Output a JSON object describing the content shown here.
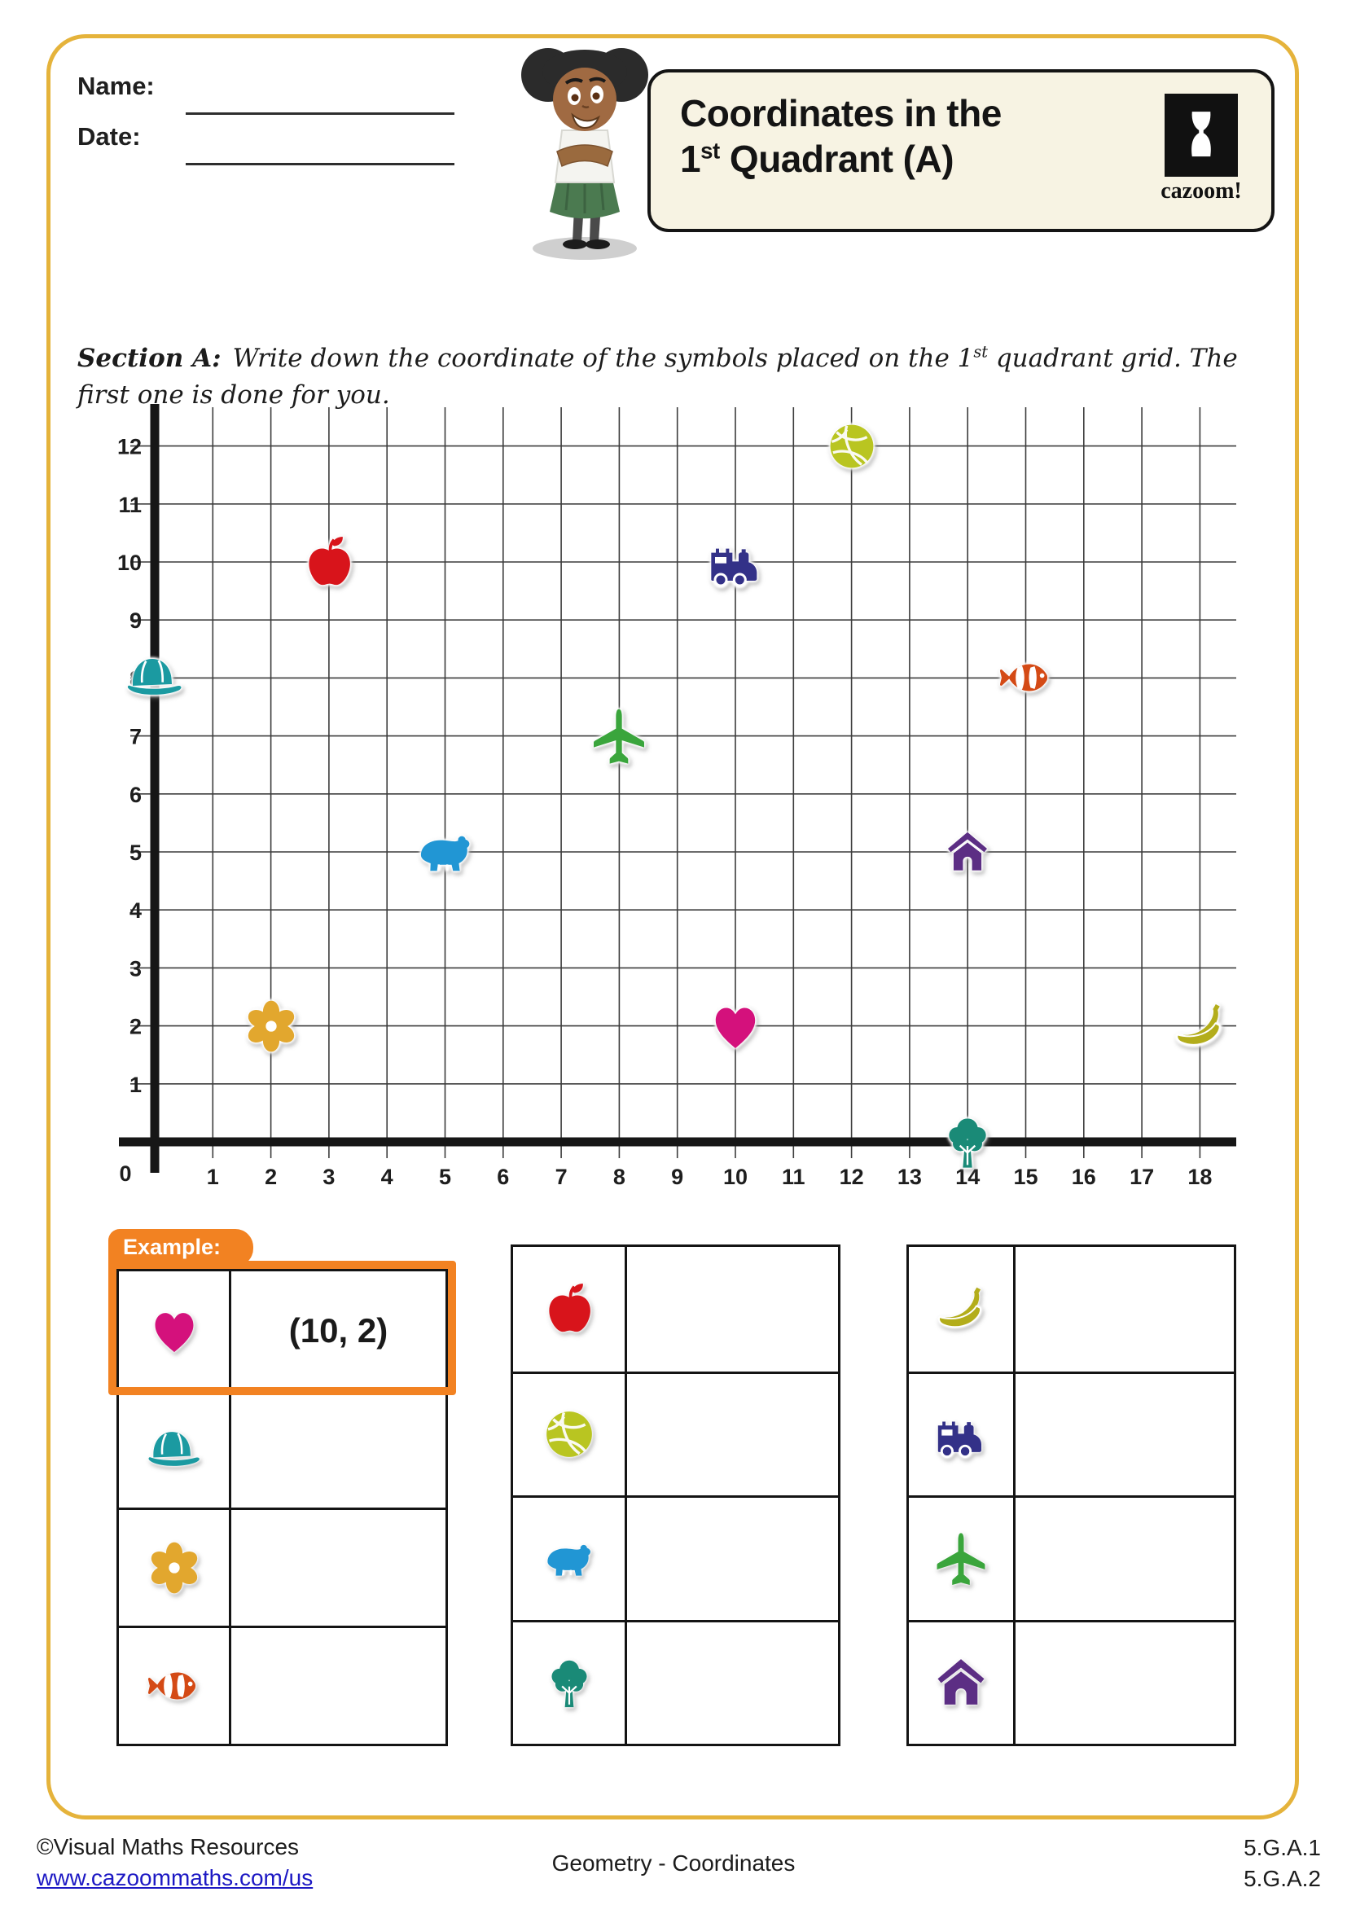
{
  "page": {
    "name_label": "Name:",
    "date_label": "Date:",
    "title_line1": "Coordinates in the",
    "title_num": "1",
    "title_sup": "st",
    "title_rest": " Quadrant (A)",
    "logo_text": "cazoom!"
  },
  "section_a": {
    "heading": "Section A:",
    "before_sup": "Write down the coordinate of the symbols placed on the 1",
    "sup": "st",
    "after_sup": " quadrant grid. The first one is done for you."
  },
  "chart_data": {
    "type": "scatter",
    "title": "",
    "xlabel": "",
    "ylabel": "",
    "xlim": [
      0,
      18
    ],
    "ylim": [
      0,
      12
    ],
    "grid": true,
    "x_ticks": [
      0,
      1,
      2,
      3,
      4,
      5,
      6,
      7,
      8,
      9,
      10,
      11,
      12,
      13,
      14,
      15,
      16,
      17,
      18
    ],
    "y_ticks": [
      1,
      2,
      3,
      4,
      5,
      6,
      7,
      8,
      9,
      10,
      11,
      12
    ],
    "points": [
      {
        "symbol": "cap",
        "x": 0,
        "y": 8,
        "color": "#1b9aa1",
        "size": 80
      },
      {
        "symbol": "flower",
        "x": 2,
        "y": 2,
        "color": "#e2a72e",
        "size": 76
      },
      {
        "symbol": "apple",
        "x": 3,
        "y": 10,
        "color": "#d8141b",
        "size": 76
      },
      {
        "symbol": "bear",
        "x": 5,
        "y": 5,
        "color": "#2196d4",
        "size": 86
      },
      {
        "symbol": "airplane",
        "x": 8,
        "y": 7,
        "color": "#3aa53c",
        "size": 80
      },
      {
        "symbol": "train",
        "x": 10,
        "y": 10,
        "color": "#333188",
        "size": 80
      },
      {
        "symbol": "heart",
        "x": 10,
        "y": 2,
        "color": "#d4117c",
        "size": 66
      },
      {
        "symbol": "basketball",
        "x": 12,
        "y": 12,
        "color": "#b9c521",
        "size": 72
      },
      {
        "symbol": "house",
        "x": 14,
        "y": 5,
        "color": "#5c2e84",
        "size": 64
      },
      {
        "symbol": "tree",
        "x": 14,
        "y": 0,
        "color": "#1a8a77",
        "size": 80
      },
      {
        "symbol": "fish",
        "x": 15,
        "y": 8,
        "color": "#d44a15",
        "size": 76
      },
      {
        "symbol": "banana",
        "x": 18,
        "y": 2,
        "color": "#b3ad1b",
        "size": 78
      }
    ]
  },
  "tables": [
    {
      "example_label": "Example:",
      "rows": [
        {
          "symbol": "heart",
          "color": "#d4117c",
          "answer": "(10, 2)"
        },
        {
          "symbol": "cap",
          "color": "#1b9aa1",
          "answer": ""
        },
        {
          "symbol": "flower",
          "color": "#e2a72e",
          "answer": ""
        },
        {
          "symbol": "fish",
          "color": "#d44a15",
          "answer": ""
        }
      ]
    },
    {
      "rows": [
        {
          "symbol": "apple",
          "color": "#d8141b",
          "answer": ""
        },
        {
          "symbol": "basketball",
          "color": "#b9c521",
          "answer": ""
        },
        {
          "symbol": "bear",
          "color": "#2196d4",
          "answer": ""
        },
        {
          "symbol": "tree",
          "color": "#1a8a77",
          "answer": ""
        }
      ]
    },
    {
      "rows": [
        {
          "symbol": "banana",
          "color": "#b3ad1b",
          "answer": ""
        },
        {
          "symbol": "train",
          "color": "#333188",
          "answer": ""
        },
        {
          "symbol": "airplane",
          "color": "#3aa53c",
          "answer": ""
        },
        {
          "symbol": "house",
          "color": "#5c2e84",
          "answer": ""
        }
      ]
    }
  ],
  "footer": {
    "copyright": "©Visual Maths Resources",
    "link": "www.cazoommaths.com/us",
    "center": "Geometry - Coordinates",
    "standard1": "5.G.A.1",
    "standard2": "5.G.A.2"
  }
}
